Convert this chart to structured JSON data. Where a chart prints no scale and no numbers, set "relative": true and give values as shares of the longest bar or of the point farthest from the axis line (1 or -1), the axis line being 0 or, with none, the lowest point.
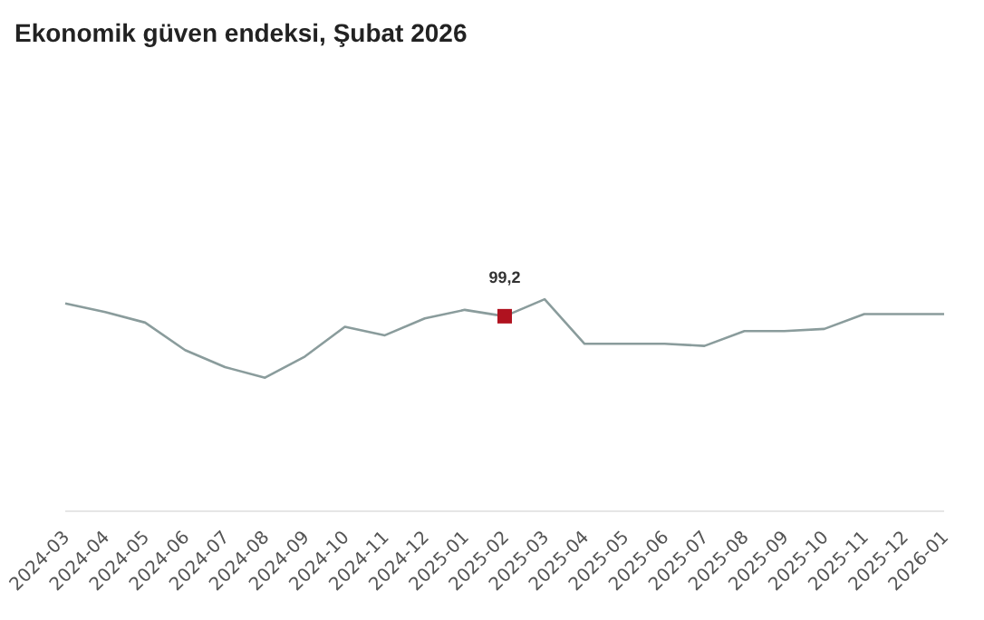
{
  "chart_data": {
    "type": "line",
    "title": "Ekonomik güven endeksi, Şubat 2026",
    "relative": true,
    "grid": false,
    "legend": false,
    "categories": [
      "2024-03",
      "2024-04",
      "2024-05",
      "2024-06",
      "2024-07",
      "2024-08",
      "2024-09",
      "2024-10",
      "2024-11",
      "2024-12",
      "2025-01",
      "2025-02",
      "2025-03",
      "2025-04",
      "2025-05",
      "2025-06",
      "2025-07",
      "2025-08",
      "2025-09",
      "2025-10",
      "2025-11",
      "2025-12",
      "2026-01"
    ],
    "series": [
      {
        "type": "line",
        "color": "#8a9c9c",
        "marker": "none",
        "values": [
          0.98,
          0.94,
          0.89,
          0.76,
          0.68,
          0.63,
          0.73,
          0.87,
          0.83,
          0.91,
          0.95,
          0.92,
          1,
          0.79,
          0.79,
          0.79,
          0.78,
          0.85,
          0.85,
          0.86,
          0.93,
          0.93,
          0.93
        ]
      },
      {
        "type": "scatter",
        "color": "#b0121f",
        "marker": "square",
        "values": [
          null,
          null,
          null,
          null,
          null,
          null,
          null,
          null,
          null,
          null,
          null,
          0.92,
          null,
          null,
          null,
          null,
          null,
          null,
          null,
          null,
          null,
          null,
          null
        ]
      }
    ],
    "annotations": [
      "99,2"
    ]
  }
}
